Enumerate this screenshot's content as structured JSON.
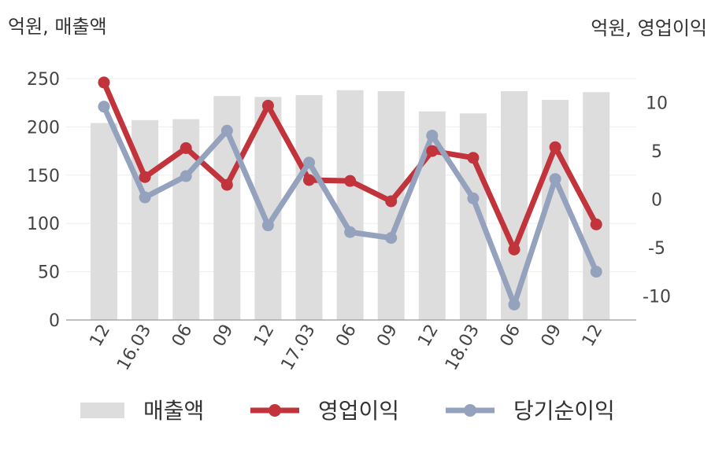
{
  "chart_data": {
    "type": "bar+line",
    "categories": [
      "12",
      "16.03",
      "06",
      "09",
      "12",
      "17.03",
      "06",
      "09",
      "12",
      "18.03",
      "06",
      "09",
      "12"
    ],
    "y_left": {
      "label": "억원, 매출액",
      "ylim": [
        0,
        250
      ],
      "ticks": [
        0,
        50,
        100,
        150,
        200,
        250
      ]
    },
    "y_right": {
      "label": "억원, 영업이익",
      "ylim": [
        -12.5,
        12.5
      ],
      "ticks": [
        -10,
        -5,
        0,
        5,
        10
      ]
    },
    "series": [
      {
        "name": "매출액",
        "type": "bar",
        "axis": "left",
        "color": "#dddddd",
        "values": [
          204,
          207,
          208,
          232,
          231,
          233,
          238,
          237,
          216,
          214,
          237,
          228,
          236
        ]
      },
      {
        "name": "영업이익",
        "type": "line",
        "axis": "right",
        "color": "#c1343b",
        "values": [
          12.1,
          2.3,
          5.3,
          1.5,
          9.7,
          2.0,
          1.9,
          -0.2,
          5.0,
          4.3,
          -5.2,
          5.4,
          -2.6
        ]
      },
      {
        "name": "당기순이익",
        "type": "line",
        "axis": "right",
        "color": "#95a2bd",
        "values": [
          9.6,
          0.2,
          2.4,
          7.1,
          -2.7,
          3.8,
          -3.4,
          -4.0,
          6.6,
          0.1,
          -10.9,
          2.1,
          -7.5
        ]
      }
    ],
    "grid": true,
    "legend": "bottom"
  }
}
